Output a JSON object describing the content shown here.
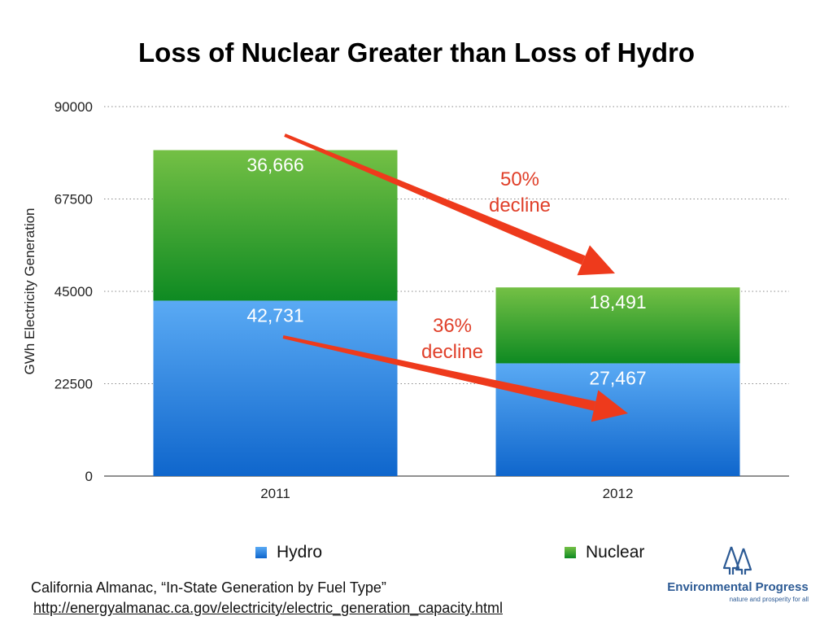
{
  "chart_data": {
    "type": "bar",
    "stacked": true,
    "title": "Loss of Nuclear Greater than Loss of Hydro",
    "xlabel": "",
    "ylabel": "GWh Electricity Generation",
    "ylim": [
      0,
      90000
    ],
    "yticks": [
      0,
      22500,
      45000,
      67500,
      90000
    ],
    "grid": true,
    "categories": [
      "2011",
      "2012"
    ],
    "series": [
      {
        "name": "Hydro",
        "values": [
          42731,
          27467
        ],
        "labels": [
          "42,731",
          "27,467"
        ]
      },
      {
        "name": "Nuclear",
        "values": [
          36666,
          18491
        ],
        "labels": [
          "36,666",
          "18,491"
        ]
      }
    ],
    "annotations": [
      {
        "line1": "50%",
        "line2": "decline"
      },
      {
        "line1": "36%",
        "line2": "decline"
      }
    ],
    "legend_position": "bottom"
  },
  "legend": {
    "hydro": "Hydro",
    "nuclear": "Nuclear"
  },
  "source": {
    "citation": "California Almanac, “In-State Generation by Fuel Type”",
    "url": "http://energyalmanac.ca.gov/electricity/electric_generation_capacity.html"
  },
  "logo": {
    "name": "Environmental Progress",
    "tagline": "nature and prosperity for all"
  },
  "colors": {
    "hydro_top": "#5aaaf4",
    "hydro_bottom": "#0f66cc",
    "nuclear_top": "#74c045",
    "nuclear_bottom": "#0e8a22",
    "arrow": "#ee3a1c",
    "annotation": "#e0402a",
    "logo": "#2c5a94"
  }
}
